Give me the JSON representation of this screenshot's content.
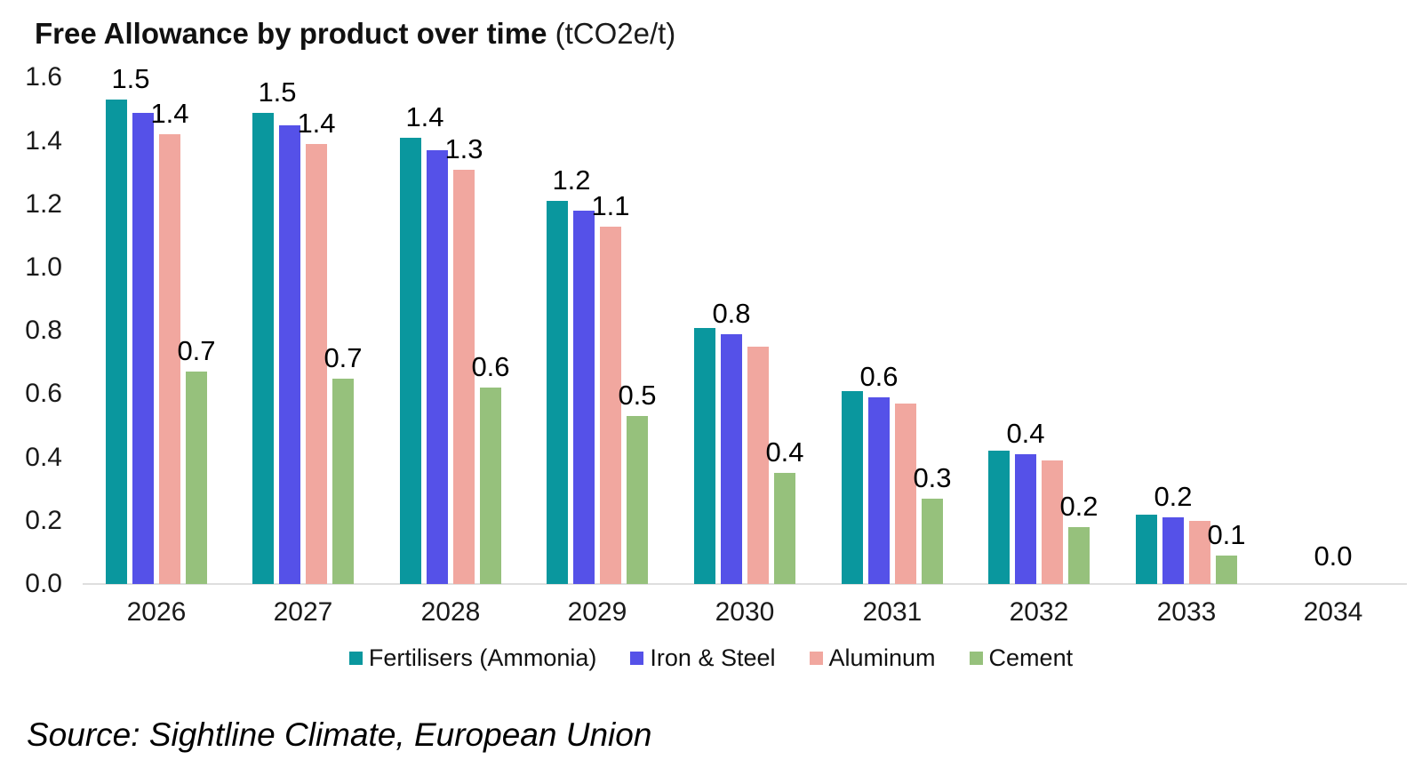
{
  "title": {
    "bold": "Free Allowance by product over time",
    "unit": " (tCO2e/t)"
  },
  "source": "Source: Sightline Climate, European Union",
  "chart_data": {
    "type": "bar",
    "title": "Free Allowance by product over time (tCO2e/t)",
    "xlabel": "",
    "ylabel": "",
    "ylim": [
      0,
      1.6
    ],
    "grid": false,
    "legend_position": "bottom",
    "y_ticks": [
      "1.6",
      "1.4",
      "1.2",
      "1.0",
      "0.8",
      "0.6",
      "0.4",
      "0.2",
      "0.0"
    ],
    "categories": [
      "2026",
      "2027",
      "2028",
      "2029",
      "2030",
      "2031",
      "2032",
      "2033",
      "2034"
    ],
    "series": [
      {
        "name": "Fertilisers (Ammonia)",
        "color": "#0a979e",
        "values": [
          1.53,
          1.49,
          1.41,
          1.21,
          0.81,
          0.61,
          0.42,
          0.22,
          0.0
        ]
      },
      {
        "name": "Iron & Steel",
        "color": "#5551e8",
        "values": [
          1.49,
          1.45,
          1.37,
          1.18,
          0.79,
          0.59,
          0.41,
          0.21,
          0.0
        ]
      },
      {
        "name": "Aluminum",
        "color": "#f1a79f",
        "values": [
          1.42,
          1.39,
          1.31,
          1.13,
          0.75,
          0.57,
          0.39,
          0.2,
          0.0
        ]
      },
      {
        "name": "Cement",
        "color": "#96c17c",
        "values": [
          0.67,
          0.65,
          0.62,
          0.53,
          0.35,
          0.27,
          0.18,
          0.09,
          0.0
        ]
      }
    ],
    "bar_labels": [
      [
        {
          "bar": 0,
          "text": "1.5"
        },
        {
          "bar": 2,
          "text": "1.4"
        },
        {
          "bar": 3,
          "text": "0.7"
        }
      ],
      [
        {
          "bar": 0,
          "text": "1.5"
        },
        {
          "bar": 2,
          "text": "1.4"
        },
        {
          "bar": 3,
          "text": "0.7"
        }
      ],
      [
        {
          "bar": 0,
          "text": "1.4"
        },
        {
          "bar": 2,
          "text": "1.3"
        },
        {
          "bar": 3,
          "text": "0.6"
        }
      ],
      [
        {
          "bar": 0,
          "text": "1.2"
        },
        {
          "bar": 2,
          "text": "1.1"
        },
        {
          "bar": 3,
          "text": "0.5"
        }
      ],
      [
        {
          "bar": 1,
          "text": "0.8"
        },
        {
          "bar": 3,
          "text": "0.4"
        }
      ],
      [
        {
          "bar": 1,
          "text": "0.6"
        },
        {
          "bar": 3,
          "text": "0.3"
        }
      ],
      [
        {
          "bar": 1,
          "text": "0.4"
        },
        {
          "bar": 3,
          "text": "0.2"
        }
      ],
      [
        {
          "bar": 1,
          "text": "0.2"
        },
        {
          "bar": 3,
          "text": "0.1"
        }
      ],
      [
        {
          "bar": -1,
          "text": "0.0"
        }
      ]
    ]
  }
}
